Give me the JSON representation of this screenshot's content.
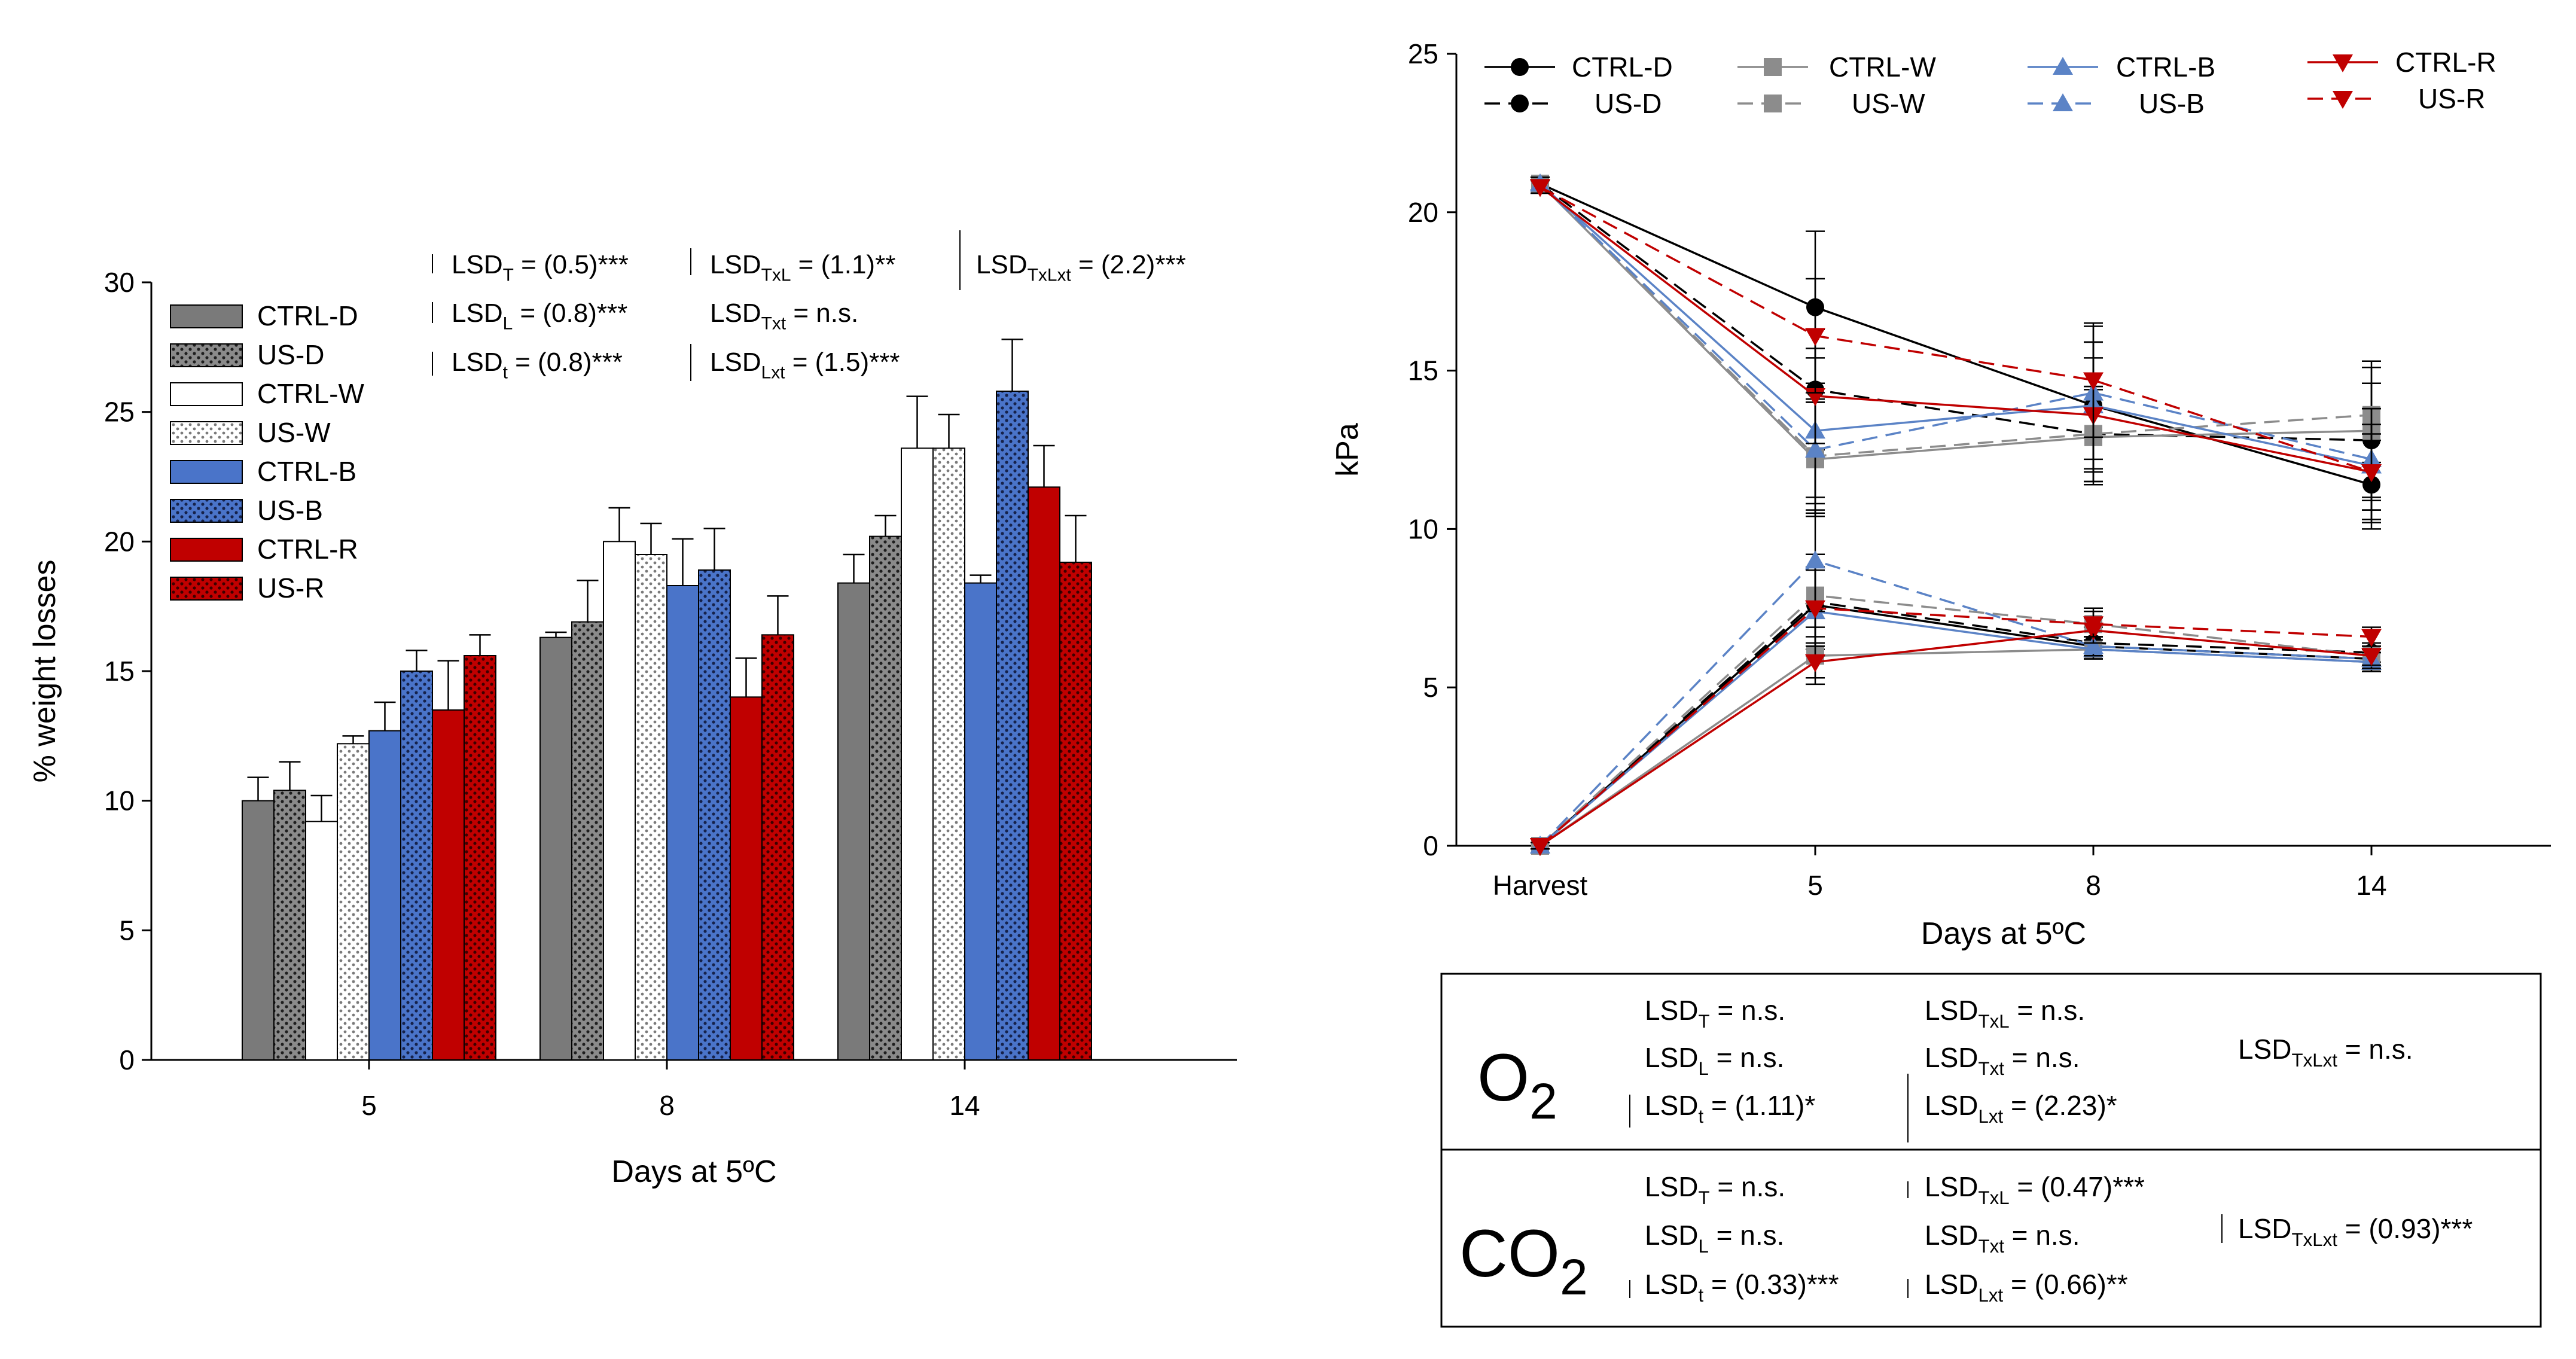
{
  "colors": {
    "dark": "#7a7a7a",
    "white": "#ffffff",
    "blue": "#4a74c9",
    "red": "#c00000",
    "black": "#000000",
    "gray_line": "#8c8c8c",
    "blue_line": "#5b83c6",
    "red_line": "#c00000"
  },
  "chart_data": [
    {
      "type": "bar",
      "ylabel": "% weight losses",
      "xlabel": "Days at 5ºC",
      "ylim": [
        0,
        30
      ],
      "yticks": [
        "0",
        "5",
        "10",
        "15",
        "20",
        "25",
        "30"
      ],
      "categories": [
        "5",
        "8",
        "14"
      ],
      "legend_position": "top-left",
      "series": [
        {
          "name": "CTRL-D",
          "pattern": "solid",
          "color": "dark",
          "values": [
            10.0,
            16.3,
            18.4
          ],
          "errors": [
            0.9,
            0.2,
            1.1
          ]
        },
        {
          "name": "US-D",
          "pattern": "dots-dark",
          "color": "dark",
          "values": [
            10.4,
            16.9,
            20.2
          ],
          "errors": [
            1.1,
            1.6,
            0.8
          ]
        },
        {
          "name": "CTRL-W",
          "pattern": "solid",
          "color": "white",
          "values": [
            9.2,
            20.0,
            23.6
          ],
          "errors": [
            1.0,
            1.3,
            2.0
          ]
        },
        {
          "name": "US-W",
          "pattern": "dots-light",
          "color": "white",
          "values": [
            12.2,
            19.5,
            23.6
          ],
          "errors": [
            0.3,
            1.2,
            1.3
          ]
        },
        {
          "name": "CTRL-B",
          "pattern": "solid",
          "color": "blue",
          "values": [
            12.7,
            18.3,
            18.4
          ],
          "errors": [
            1.1,
            1.8,
            0.3
          ]
        },
        {
          "name": "US-B",
          "pattern": "dots-blue",
          "color": "blue",
          "values": [
            15.0,
            18.9,
            25.8
          ],
          "errors": [
            0.8,
            1.6,
            2.0
          ]
        },
        {
          "name": "CTRL-R",
          "pattern": "solid",
          "color": "red",
          "values": [
            13.5,
            14.0,
            22.1
          ],
          "errors": [
            1.9,
            1.5,
            1.6
          ]
        },
        {
          "name": "US-R",
          "pattern": "dots-red",
          "color": "red",
          "values": [
            15.6,
            16.4,
            19.2
          ],
          "errors": [
            0.8,
            1.5,
            1.8
          ]
        }
      ],
      "annotations": [
        {
          "name": "lsd-t",
          "base": "LSD",
          "sub": "T",
          "value": " = (0.5)***"
        },
        {
          "name": "lsd-l",
          "base": "LSD",
          "sub": "L",
          "value": " = (0.8)***"
        },
        {
          "name": "lsd-time",
          "base": "LSD",
          "sub": "t",
          "value": " = (0.8)***"
        },
        {
          "name": "lsd-txl",
          "base": "LSD",
          "sub": "TxL",
          "value": " = (1.1)**"
        },
        {
          "name": "lsd-txt",
          "base": "LSD",
          "sub": "Txt",
          "value": " = n.s."
        },
        {
          "name": "lsd-lxt",
          "base": "LSD",
          "sub": "Lxt",
          "value": " = (1.5)***"
        },
        {
          "name": "lsd-txlxt",
          "base": "LSD",
          "sub": "TxLxt",
          "value": " = (2.2)***"
        }
      ]
    },
    {
      "type": "line",
      "ylabel": "kPa",
      "xlabel": "Days at 5ºC",
      "ylim": [
        0,
        25
      ],
      "yticks": [
        "0",
        "5",
        "10",
        "15",
        "20",
        "25"
      ],
      "categories": [
        "Harvest",
        "5",
        "8",
        "14"
      ],
      "legend_position": "top",
      "series": [
        {
          "name": "CTRL-D",
          "color": "black",
          "dash": false,
          "marker": "circle",
          "o2": [
            20.9,
            17.0,
            13.9,
            11.4
          ],
          "o2_err": [
            0.2,
            2.4,
            2.0,
            1.4
          ],
          "co2": [
            0.0,
            7.6,
            6.3,
            5.9
          ],
          "co2_err": [
            0.1,
            1.2,
            0.3,
            0.3
          ]
        },
        {
          "name": "US-D",
          "color": "black",
          "dash": true,
          "marker": "circle",
          "o2": [
            20.9,
            14.4,
            13.0,
            12.8
          ],
          "o2_err": [
            0.2,
            1.9,
            1.5,
            1.8
          ],
          "co2": [
            0.0,
            7.7,
            6.4,
            6.1
          ],
          "co2_err": [
            0.1,
            1.5,
            0.5,
            0.3
          ]
        },
        {
          "name": "CTRL-W",
          "color": "gray_line",
          "dash": false,
          "marker": "square",
          "o2": [
            20.9,
            12.2,
            12.9,
            13.1
          ],
          "o2_err": [
            0.2,
            1.8,
            1.5,
            2.2
          ],
          "co2": [
            0.0,
            6.0,
            6.2,
            5.8
          ],
          "co2_err": [
            0.1,
            0.9,
            0.3,
            0.3
          ]
        },
        {
          "name": "US-W",
          "color": "gray_line",
          "dash": true,
          "marker": "square",
          "o2": [
            20.9,
            12.3,
            13.0,
            13.6
          ],
          "o2_err": [
            0.2,
            1.8,
            1.5,
            1.5
          ],
          "co2": [
            0.0,
            7.9,
            7.0,
            6.0
          ],
          "co2_err": [
            0.1,
            1.3,
            0.5,
            0.3
          ]
        },
        {
          "name": "CTRL-B",
          "color": "blue_line",
          "dash": false,
          "marker": "up",
          "o2": [
            20.9,
            13.1,
            13.9,
            12.0
          ],
          "o2_err": [
            0.2,
            2.3,
            2.0,
            1.8
          ],
          "co2": [
            0.0,
            7.4,
            6.2,
            5.8
          ],
          "co2_err": [
            0.1,
            1.4,
            0.3,
            0.3
          ]
        },
        {
          "name": "US-B",
          "color": "blue_line",
          "dash": true,
          "marker": "up",
          "o2": [
            20.9,
            12.5,
            14.3,
            12.2
          ],
          "o2_err": [
            0.2,
            1.5,
            2.1,
            1.6
          ],
          "co2": [
            0.0,
            9.0,
            6.3,
            5.9
          ],
          "co2_err": [
            0.1,
            1.6,
            0.3,
            0.3
          ]
        },
        {
          "name": "CTRL-R",
          "color": "red_line",
          "dash": false,
          "marker": "down",
          "o2": [
            20.8,
            14.2,
            13.6,
            11.8
          ],
          "o2_err": [
            0.2,
            1.5,
            1.8,
            1.2
          ],
          "co2": [
            0.0,
            5.8,
            6.8,
            6.0
          ],
          "co2_err": [
            0.1,
            0.5,
            0.4,
            0.3
          ]
        },
        {
          "name": "US-R",
          "color": "red_line",
          "dash": true,
          "marker": "down",
          "o2": [
            20.8,
            16.1,
            14.7,
            11.8
          ],
          "o2_err": [
            0.2,
            1.8,
            1.8,
            1.5
          ],
          "co2": [
            0.0,
            7.5,
            7.0,
            6.6
          ],
          "co2_err": [
            0.1,
            1.2,
            0.4,
            0.3
          ]
        }
      ],
      "table": {
        "o2_label_main": "O",
        "o2_label_sub": "2",
        "co2_label_main": "CO",
        "co2_label_sub": "2",
        "o2_rows": [
          {
            "name": "o2-lsd-t",
            "base": "LSD",
            "sub": "T",
            "value": " = n.s."
          },
          {
            "name": "o2-lsd-l",
            "base": "LSD",
            "sub": "L",
            "value": " = n.s."
          },
          {
            "name": "o2-lsd-time",
            "base": "LSD",
            "sub": "t",
            "value": " = (1.11)*"
          },
          {
            "name": "o2-lsd-txl",
            "base": "LSD",
            "sub": "TxL",
            "value": " = n.s."
          },
          {
            "name": "o2-lsd-txt",
            "base": "LSD",
            "sub": "Txt",
            "value": " = n.s."
          },
          {
            "name": "o2-lsd-lxt",
            "base": "LSD",
            "sub": "Lxt",
            "value": " = (2.23)*"
          },
          {
            "name": "o2-lsd-txlxt",
            "base": "LSD",
            "sub": "TxLxt",
            "value": " = n.s."
          }
        ],
        "co2_rows": [
          {
            "name": "co2-lsd-t",
            "base": "LSD",
            "sub": "T",
            "value": " = n.s."
          },
          {
            "name": "co2-lsd-l",
            "base": "LSD",
            "sub": "L",
            "value": " = n.s."
          },
          {
            "name": "co2-lsd-time",
            "base": "LSD",
            "sub": "t",
            "value": " = (0.33)***"
          },
          {
            "name": "co2-lsd-txl",
            "base": "LSD",
            "sub": "TxL",
            "value": " = (0.47)***"
          },
          {
            "name": "co2-lsd-txt",
            "base": "LSD",
            "sub": "Txt",
            "value": " = n.s."
          },
          {
            "name": "co2-lsd-lxt",
            "base": "LSD",
            "sub": "Lxt",
            "value": " = (0.66)**"
          },
          {
            "name": "co2-lsd-txlxt",
            "base": "LSD",
            "sub": "TxLxt",
            "value": " = (0.93)***"
          }
        ]
      }
    }
  ]
}
